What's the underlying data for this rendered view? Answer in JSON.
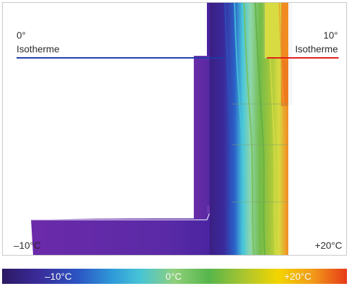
{
  "labels": {
    "left_degree": "0°",
    "left_isotherm": "Isotherme",
    "right_degree": "10°",
    "right_isotherm": "Isotherme",
    "bottom_left_temperature": "–10°C",
    "bottom_right_temperature": "+20°C"
  },
  "legend": {
    "minus_label": "–10°C",
    "zero_label": "0°C",
    "plus_label": "+20°C"
  },
  "colors": {
    "isotherm_0": "#1c3aa8",
    "isotherm_10": "#e11a1a",
    "cold": "#5b2aa3",
    "deep_cold": "#3b1f83",
    "blue": "#2a63c8",
    "cyan": "#49c7da",
    "green": "#72bb4a",
    "yellow": "#d8db42",
    "orange": "#f18a20"
  }
}
